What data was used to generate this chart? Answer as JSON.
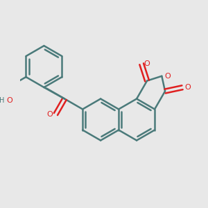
{
  "bg": "#e8e8e8",
  "bond_color": "#4a7a7a",
  "oxy_color": "#e02020",
  "lw": 1.8,
  "xlim": [
    -0.5,
    3.0
  ],
  "ylim": [
    -2.2,
    1.8
  ]
}
